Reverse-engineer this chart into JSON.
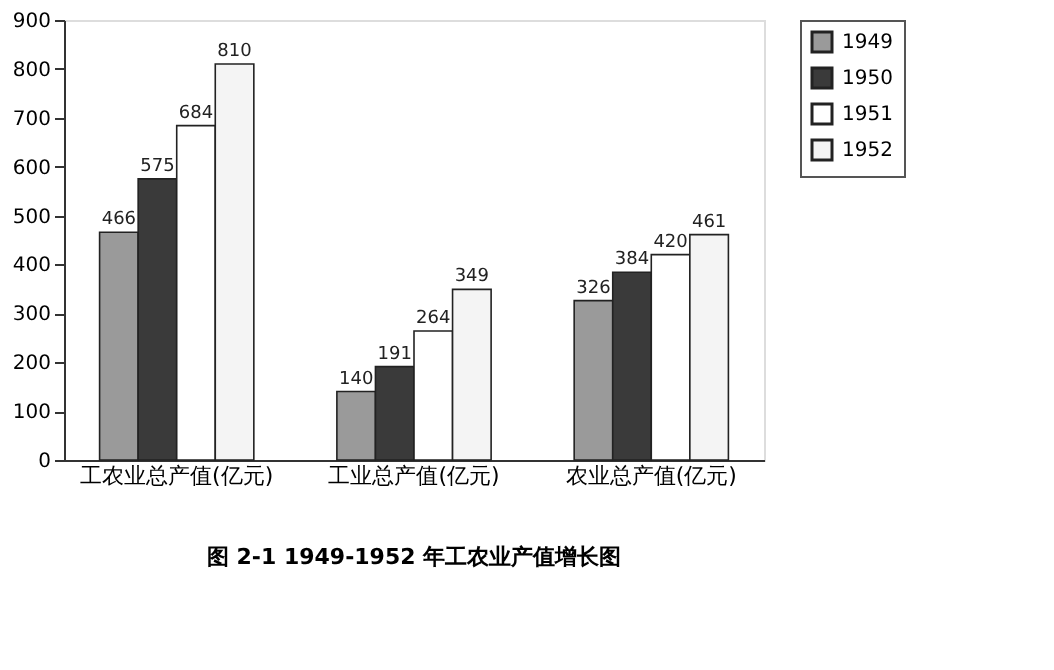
{
  "chart_data": {
    "type": "bar",
    "title": "图 2-1    1949-1952 年工农业产值增长图",
    "categories": [
      "工农业总产值(亿元)",
      "工业总产值(亿元)",
      "农业总产值(亿元)"
    ],
    "series": [
      {
        "name": "1949",
        "color": "#9a9a9a",
        "values": [
          466,
          140,
          326
        ]
      },
      {
        "name": "1950",
        "color": "#3a3a3a",
        "values": [
          575,
          191,
          384
        ]
      },
      {
        "name": "1951",
        "color": "#ffffff",
        "values": [
          684,
          264,
          420
        ]
      },
      {
        "name": "1952",
        "color": "#f4f4f4",
        "values": [
          810,
          349,
          461
        ]
      }
    ],
    "ylim": [
      0,
      900
    ],
    "yticks": [
      0,
      100,
      200,
      300,
      400,
      500,
      600,
      700,
      800,
      900
    ],
    "grid": false,
    "legend": "right",
    "data_labels": true
  }
}
